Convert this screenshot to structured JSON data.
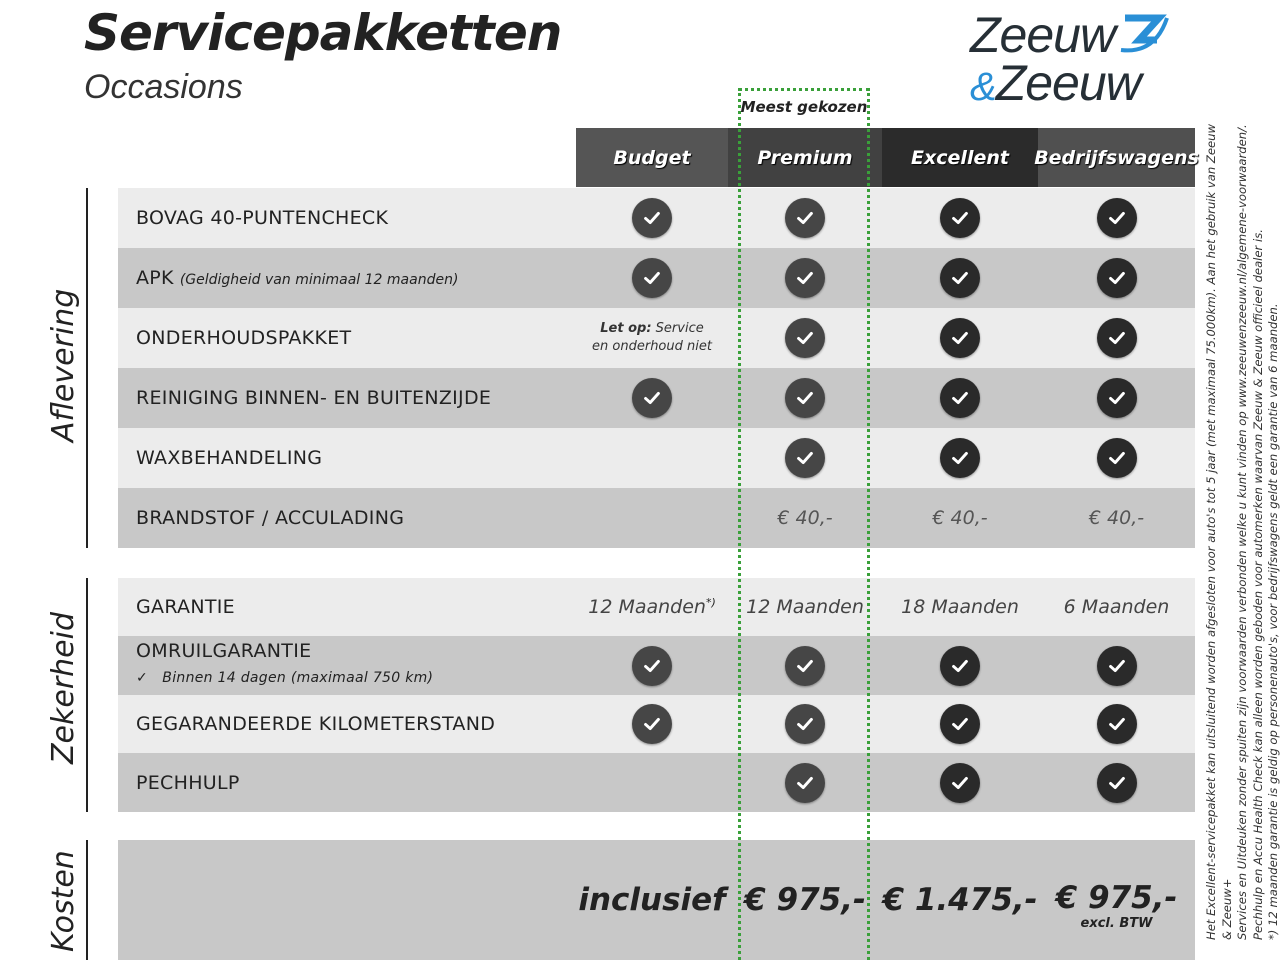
{
  "header": {
    "title": "Servicepakketten",
    "subtitle": "Occasions",
    "logo_text": "Zeeuw & Zeeuw",
    "logo_line1": "Zeeuw",
    "logo_amp": "&",
    "logo_line2": "Zeeuw"
  },
  "highlight": {
    "label": "Meest gekozen",
    "color": "#3aa03a"
  },
  "columns": [
    {
      "label": "Budget",
      "color": "#555555"
    },
    {
      "label": "Premium",
      "color": "#414141"
    },
    {
      "label": "Excellent",
      "color": "#2b2b2b"
    },
    {
      "label": "Bedrijfswagens",
      "color": "#505050"
    }
  ],
  "sections": [
    {
      "label": "Aflevering"
    },
    {
      "label": "Zekerheid"
    },
    {
      "label": "Kosten"
    }
  ],
  "aflevering": [
    {
      "label": "BOVAG 40-PUNTENCHECK",
      "cells": [
        "check",
        "check",
        "check",
        "check"
      ]
    },
    {
      "label": "APK",
      "sub": "(Geldigheid van minimaal 12 maanden)",
      "cells": [
        "check",
        "check",
        "check",
        "check"
      ]
    },
    {
      "label": "ONDERHOUDSPAKKET",
      "note_bold": "Let op:",
      "note": " Service en onderhoud niet",
      "cells": [
        "note",
        "check",
        "check",
        "check"
      ]
    },
    {
      "label": "REINIGING BINNEN- EN BUITENZIJDE",
      "cells": [
        "check",
        "check",
        "check",
        "check"
      ]
    },
    {
      "label": "WAXBEHANDELING",
      "cells": [
        "",
        "check",
        "check",
        "check"
      ]
    },
    {
      "label": "BRANDSTOF / ACCULADING",
      "cells": [
        "",
        "€ 40,-",
        "€ 40,-",
        "€ 40,-"
      ]
    }
  ],
  "zekerheid": [
    {
      "label": "GARANTIE",
      "cells": [
        "12 Maanden",
        "12 Maanden",
        "18 Maanden",
        "6 Maanden"
      ],
      "footnote_mark": "*)"
    },
    {
      "label": "OMRUILGARANTIE",
      "sub": "Binnen 14 dagen (maximaal 750 km)",
      "cells": [
        "check",
        "check",
        "check",
        "check"
      ]
    },
    {
      "label": "GEGARANDEERDE KILOMETERSTAND",
      "cells": [
        "check",
        "check",
        "check",
        "check"
      ]
    },
    {
      "label": "PECHHULP",
      "cells": [
        "",
        "check",
        "check",
        "check"
      ]
    }
  ],
  "kosten": {
    "cells": [
      "inclusief",
      "€ 975,-",
      "€ 1.475,-",
      "€ 975,-"
    ],
    "note": "excl. BTW"
  },
  "footnotes": [
    "Het Excellent-servicepakket kan uitsluitend worden afgesloten voor auto's tot 5 jaar (met maximaal 75.000km). Aan het gebruik van Zeeuw & Zeeuw+",
    "Services en Uitdeuken zonder spuiten zijn voorwaarden verbonden welke u kunt vinden op www.zeeuwenzeeuw.nl/algemene-voorwaarden/.",
    "Pechhulp en Accu Health Check kan alleen worden geboden voor automerken waarvan Zeeuw & Zeeuw officieel dealer is.",
    "*) 12 maanden garantie is geldig op personenauto's, voor bedrijfswagens geldt een garantie van 6 maanden."
  ]
}
